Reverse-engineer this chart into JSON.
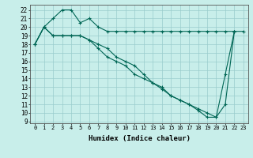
{
  "xlabel": "Humidex (Indice chaleur)",
  "background_color": "#c8eeea",
  "grid_color": "#99cccc",
  "line_color": "#006655",
  "xlim": [
    -0.5,
    23.5
  ],
  "ylim": [
    8.8,
    22.6
  ],
  "xticks": [
    0,
    1,
    2,
    3,
    4,
    5,
    6,
    7,
    8,
    9,
    10,
    11,
    12,
    13,
    14,
    15,
    16,
    17,
    18,
    19,
    20,
    21,
    22,
    23
  ],
  "yticks": [
    9,
    10,
    11,
    12,
    13,
    14,
    15,
    16,
    17,
    18,
    19,
    20,
    21,
    22
  ],
  "line1_x": [
    0,
    1,
    2,
    3,
    4,
    5,
    6,
    7,
    8,
    9,
    10,
    11,
    12,
    13,
    14,
    15,
    16,
    17,
    18,
    19,
    20,
    21,
    22,
    23
  ],
  "line1_y": [
    18,
    20,
    21,
    22,
    22,
    20.5,
    21,
    20,
    19.5,
    19.5,
    19.5,
    19.5,
    19.5,
    19.5,
    19.5,
    19.5,
    19.5,
    19.5,
    19.5,
    19.5,
    19.5,
    19.5,
    19.5,
    19.5
  ],
  "line2_x": [
    0,
    1,
    2,
    3,
    4,
    5,
    6,
    7,
    8,
    9,
    10,
    11,
    12,
    13,
    14,
    15,
    16,
    17,
    18,
    19,
    20,
    21,
    22
  ],
  "line2_y": [
    18,
    20,
    19,
    19,
    19,
    19,
    18.5,
    18,
    17.5,
    16.5,
    16,
    15.5,
    14.5,
    13.5,
    13,
    12,
    11.5,
    11,
    10.5,
    10,
    9.5,
    11,
    19.5
  ],
  "line3_x": [
    0,
    1,
    2,
    3,
    4,
    5,
    6,
    7,
    8,
    9,
    10,
    11,
    12,
    13,
    14,
    15,
    16,
    17,
    18,
    19,
    20,
    21,
    22
  ],
  "line3_y": [
    18,
    20,
    19,
    19,
    19,
    19,
    18.5,
    17.5,
    16.5,
    16,
    15.5,
    14.5,
    14,
    13.5,
    12.8,
    12,
    11.5,
    11,
    10.3,
    9.5,
    9.5,
    14.5,
    19.5
  ]
}
